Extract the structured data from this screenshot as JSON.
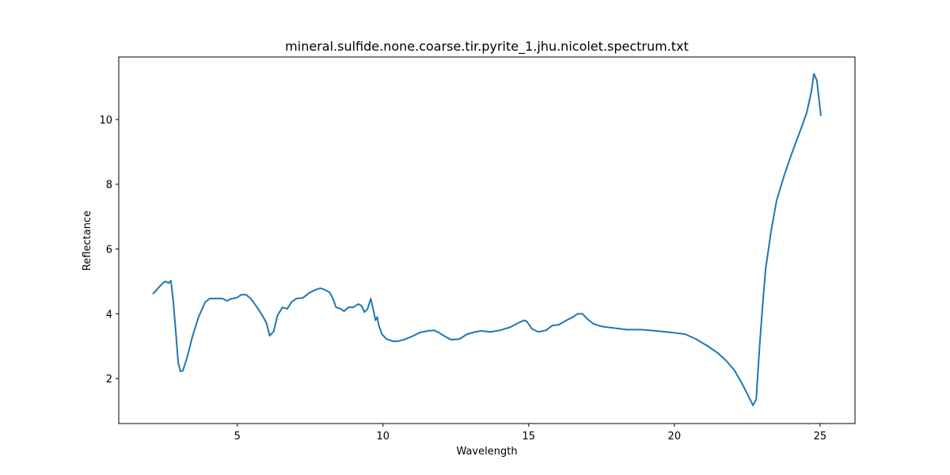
{
  "chart_data": {
    "type": "line",
    "title": "mineral.sulfide.none.coarse.tir.pyrite_1.jhu.nicolet.spectrum.txt",
    "xlabel": "Wavelength",
    "ylabel": "Reflectance",
    "xlim": [
      0.93,
      26.2
    ],
    "ylim": [
      0.61,
      11.93
    ],
    "xticks": [
      5,
      10,
      15,
      20,
      25
    ],
    "yticks": [
      2,
      4,
      6,
      8,
      10
    ],
    "grid": false,
    "series": [
      {
        "color": "#1f77b4",
        "x": [
          2.1,
          2.32,
          2.45,
          2.53,
          2.64,
          2.72,
          2.8,
          2.89,
          2.97,
          3.05,
          3.13,
          3.27,
          3.46,
          3.67,
          3.89,
          4.05,
          4.27,
          4.49,
          4.65,
          4.81,
          4.97,
          5.14,
          5.3,
          5.46,
          5.68,
          5.89,
          6.0,
          6.11,
          6.25,
          6.38,
          6.55,
          6.71,
          6.87,
          7.03,
          7.25,
          7.46,
          7.68,
          7.85,
          8.01,
          8.17,
          8.28,
          8.39,
          8.55,
          8.66,
          8.82,
          8.98,
          9.15,
          9.26,
          9.36,
          9.47,
          9.58,
          9.69,
          9.74,
          9.8,
          9.85,
          9.96,
          10.12,
          10.34,
          10.5,
          10.72,
          10.99,
          11.26,
          11.53,
          11.75,
          11.91,
          12.13,
          12.34,
          12.62,
          12.89,
          13.16,
          13.37,
          13.7,
          14.02,
          14.38,
          14.67,
          14.84,
          14.94,
          15.11,
          15.32,
          15.6,
          15.81,
          16.03,
          16.3,
          16.52,
          16.68,
          16.84,
          17.0,
          17.22,
          17.5,
          17.93,
          18.36,
          18.85,
          19.39,
          19.93,
          20.37,
          20.74,
          21.15,
          21.5,
          21.77,
          22.05,
          22.32,
          22.54,
          22.7,
          22.81,
          22.92,
          23.02,
          23.13,
          23.32,
          23.51,
          23.78,
          24.05,
          24.32,
          24.54,
          24.7,
          24.79,
          24.89,
          25.03
        ],
        "values": [
          4.61,
          4.83,
          4.95,
          5.0,
          4.95,
          5.02,
          4.4,
          3.42,
          2.49,
          2.22,
          2.24,
          2.63,
          3.3,
          3.9,
          4.35,
          4.47,
          4.47,
          4.47,
          4.4,
          4.47,
          4.49,
          4.59,
          4.59,
          4.47,
          4.2,
          3.9,
          3.71,
          3.32,
          3.46,
          3.95,
          4.2,
          4.15,
          4.37,
          4.47,
          4.49,
          4.64,
          4.74,
          4.79,
          4.74,
          4.66,
          4.47,
          4.2,
          4.15,
          4.08,
          4.2,
          4.2,
          4.3,
          4.25,
          4.05,
          4.15,
          4.47,
          4.03,
          3.8,
          3.9,
          3.66,
          3.37,
          3.22,
          3.15,
          3.15,
          3.2,
          3.3,
          3.42,
          3.47,
          3.49,
          3.42,
          3.3,
          3.2,
          3.22,
          3.37,
          3.44,
          3.47,
          3.44,
          3.49,
          3.59,
          3.73,
          3.8,
          3.76,
          3.54,
          3.44,
          3.49,
          3.64,
          3.66,
          3.8,
          3.9,
          4.0,
          4.0,
          3.85,
          3.69,
          3.61,
          3.56,
          3.51,
          3.51,
          3.47,
          3.42,
          3.37,
          3.22,
          3.0,
          2.78,
          2.56,
          2.27,
          1.85,
          1.46,
          1.17,
          1.36,
          2.93,
          4.15,
          5.37,
          6.55,
          7.5,
          8.3,
          9.0,
          9.65,
          10.2,
          10.85,
          11.41,
          11.21,
          10.11
        ]
      }
    ]
  }
}
